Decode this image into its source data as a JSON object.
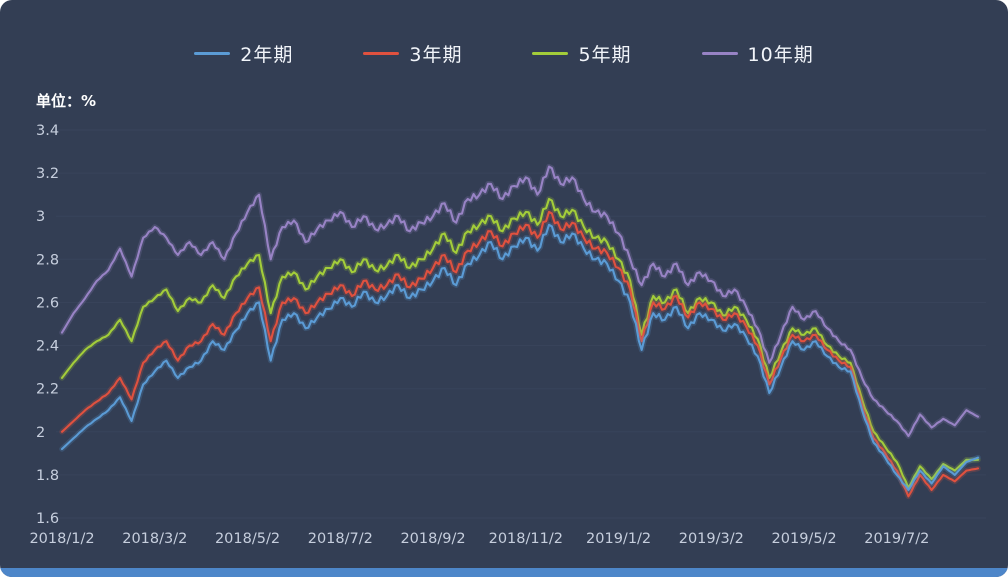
{
  "unit_label": "单位：%",
  "chart_data": {
    "type": "line",
    "title": "",
    "xlabel": "",
    "ylabel": "单位：%",
    "ylim": [
      1.6,
      3.4
    ],
    "yticks": [
      3.4,
      3.2,
      3.0,
      2.8,
      2.6,
      2.4,
      2.2,
      2.0,
      1.8,
      1.6
    ],
    "ytick_labels": [
      "3.4",
      "3.2",
      "3",
      "2.8",
      "2.6",
      "2.4",
      "2.2",
      "2",
      "1.8",
      "1.6"
    ],
    "x_tick_labels": [
      "2018/1/2",
      "2018/3/2",
      "2018/5/2",
      "2018/7/2",
      "2018/9/2",
      "2018/11/2",
      "2019/1/2",
      "2019/3/2",
      "2019/5/2",
      "2019/7/2"
    ],
    "x_tick_month_index": [
      0,
      2,
      4,
      6,
      8,
      10,
      12,
      14,
      16,
      18
    ],
    "points_per_month": 4,
    "grid": "horizontal",
    "legend_position": "top",
    "background_color": "#333e54",
    "gridline_color": "#3c4860",
    "tick_text_color": "#c6cedd",
    "series": [
      {
        "name": "2年期",
        "color": "#5b9bd5",
        "values": [
          1.92,
          1.97,
          2.02,
          2.06,
          2.1,
          2.16,
          2.05,
          2.22,
          2.28,
          2.33,
          2.25,
          2.3,
          2.33,
          2.42,
          2.38,
          2.47,
          2.55,
          2.6,
          2.33,
          2.52,
          2.55,
          2.48,
          2.53,
          2.57,
          2.62,
          2.58,
          2.65,
          2.6,
          2.63,
          2.68,
          2.62,
          2.66,
          2.7,
          2.76,
          2.68,
          2.78,
          2.82,
          2.88,
          2.8,
          2.86,
          2.9,
          2.84,
          2.96,
          2.88,
          2.92,
          2.85,
          2.8,
          2.78,
          2.7,
          2.6,
          2.38,
          2.55,
          2.52,
          2.58,
          2.48,
          2.55,
          2.52,
          2.47,
          2.5,
          2.44,
          2.35,
          2.18,
          2.3,
          2.42,
          2.38,
          2.42,
          2.35,
          2.3,
          2.28,
          2.1,
          1.95,
          1.88,
          1.8,
          1.73,
          1.82,
          1.76,
          1.84,
          1.8,
          1.86,
          1.88
        ]
      },
      {
        "name": "3年期",
        "color": "#e0513f",
        "values": [
          2.0,
          2.05,
          2.1,
          2.14,
          2.18,
          2.25,
          2.15,
          2.32,
          2.38,
          2.42,
          2.33,
          2.4,
          2.42,
          2.5,
          2.45,
          2.55,
          2.62,
          2.67,
          2.42,
          2.6,
          2.62,
          2.55,
          2.6,
          2.64,
          2.68,
          2.63,
          2.7,
          2.66,
          2.68,
          2.73,
          2.67,
          2.71,
          2.76,
          2.82,
          2.74,
          2.84,
          2.88,
          2.93,
          2.86,
          2.92,
          2.96,
          2.9,
          3.02,
          2.94,
          2.97,
          2.9,
          2.85,
          2.83,
          2.76,
          2.66,
          2.42,
          2.6,
          2.57,
          2.63,
          2.53,
          2.6,
          2.57,
          2.52,
          2.55,
          2.49,
          2.4,
          2.22,
          2.34,
          2.45,
          2.42,
          2.45,
          2.38,
          2.33,
          2.3,
          2.12,
          1.97,
          1.9,
          1.82,
          1.7,
          1.8,
          1.73,
          1.8,
          1.77,
          1.82,
          1.83
        ]
      },
      {
        "name": "5年期",
        "color": "#a3cd3a",
        "values": [
          2.25,
          2.32,
          2.38,
          2.42,
          2.45,
          2.52,
          2.42,
          2.58,
          2.62,
          2.66,
          2.56,
          2.62,
          2.6,
          2.68,
          2.62,
          2.72,
          2.78,
          2.82,
          2.55,
          2.72,
          2.74,
          2.66,
          2.72,
          2.76,
          2.8,
          2.74,
          2.8,
          2.75,
          2.77,
          2.82,
          2.76,
          2.8,
          2.85,
          2.92,
          2.83,
          2.93,
          2.96,
          3.0,
          2.93,
          2.99,
          3.02,
          2.96,
          3.08,
          3.0,
          3.03,
          2.95,
          2.9,
          2.88,
          2.8,
          2.7,
          2.45,
          2.63,
          2.6,
          2.66,
          2.55,
          2.62,
          2.6,
          2.54,
          2.58,
          2.52,
          2.43,
          2.25,
          2.37,
          2.48,
          2.45,
          2.48,
          2.4,
          2.35,
          2.32,
          2.15,
          2.0,
          1.93,
          1.86,
          1.74,
          1.84,
          1.78,
          1.85,
          1.82,
          1.87,
          1.87
        ]
      },
      {
        "name": "10年期",
        "color": "#9883c5",
        "values": [
          2.46,
          2.55,
          2.62,
          2.7,
          2.75,
          2.85,
          2.72,
          2.9,
          2.95,
          2.9,
          2.82,
          2.88,
          2.82,
          2.88,
          2.8,
          2.92,
          3.02,
          3.1,
          2.8,
          2.95,
          2.98,
          2.88,
          2.94,
          2.98,
          3.02,
          2.95,
          3.0,
          2.94,
          2.96,
          3.0,
          2.93,
          2.97,
          3.0,
          3.06,
          2.97,
          3.08,
          3.1,
          3.15,
          3.08,
          3.14,
          3.18,
          3.1,
          3.23,
          3.15,
          3.18,
          3.08,
          3.02,
          3.0,
          2.92,
          2.8,
          2.68,
          2.78,
          2.72,
          2.78,
          2.68,
          2.74,
          2.7,
          2.63,
          2.66,
          2.58,
          2.48,
          2.32,
          2.45,
          2.58,
          2.52,
          2.56,
          2.48,
          2.42,
          2.38,
          2.25,
          2.15,
          2.1,
          2.05,
          1.98,
          2.08,
          2.02,
          2.06,
          2.03,
          2.1,
          2.07
        ]
      }
    ]
  }
}
